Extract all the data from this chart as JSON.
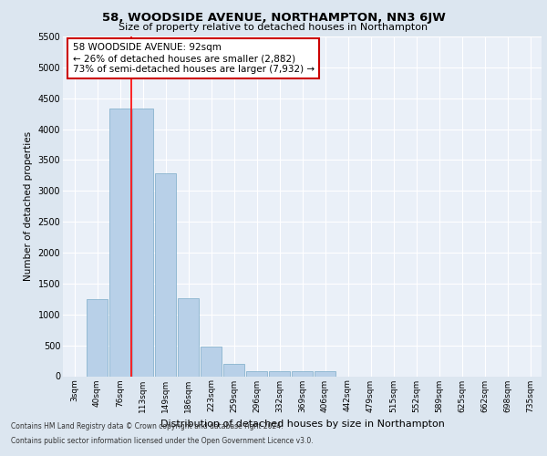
{
  "title": "58, WOODSIDE AVENUE, NORTHAMPTON, NN3 6JW",
  "subtitle": "Size of property relative to detached houses in Northampton",
  "xlabel": "Distribution of detached houses by size in Northampton",
  "ylabel": "Number of detached properties",
  "categories": [
    "3sqm",
    "40sqm",
    "76sqm",
    "113sqm",
    "149sqm",
    "186sqm",
    "223sqm",
    "259sqm",
    "296sqm",
    "332sqm",
    "369sqm",
    "406sqm",
    "442sqm",
    "479sqm",
    "515sqm",
    "552sqm",
    "589sqm",
    "625sqm",
    "662sqm",
    "698sqm",
    "735sqm"
  ],
  "values": [
    0,
    1250,
    4340,
    4340,
    3280,
    1260,
    480,
    200,
    80,
    80,
    80,
    80,
    0,
    0,
    0,
    0,
    0,
    0,
    0,
    0,
    0
  ],
  "bar_color": "#b8d0e8",
  "bar_edge_color": "#7aaac8",
  "background_color": "#dce6f0",
  "plot_bg_color": "#eaf0f8",
  "red_line_x": 2.5,
  "annotation_text": "58 WOODSIDE AVENUE: 92sqm\n← 26% of detached houses are smaller (2,882)\n73% of semi-detached houses are larger (7,932) →",
  "annotation_box_color": "#ffffff",
  "annotation_box_edge": "#cc0000",
  "ylim": [
    0,
    5500
  ],
  "yticks": [
    0,
    500,
    1000,
    1500,
    2000,
    2500,
    3000,
    3500,
    4000,
    4500,
    5000,
    5500
  ],
  "footer1": "Contains HM Land Registry data © Crown copyright and database right 2024.",
  "footer2": "Contains public sector information licensed under the Open Government Licence v3.0."
}
